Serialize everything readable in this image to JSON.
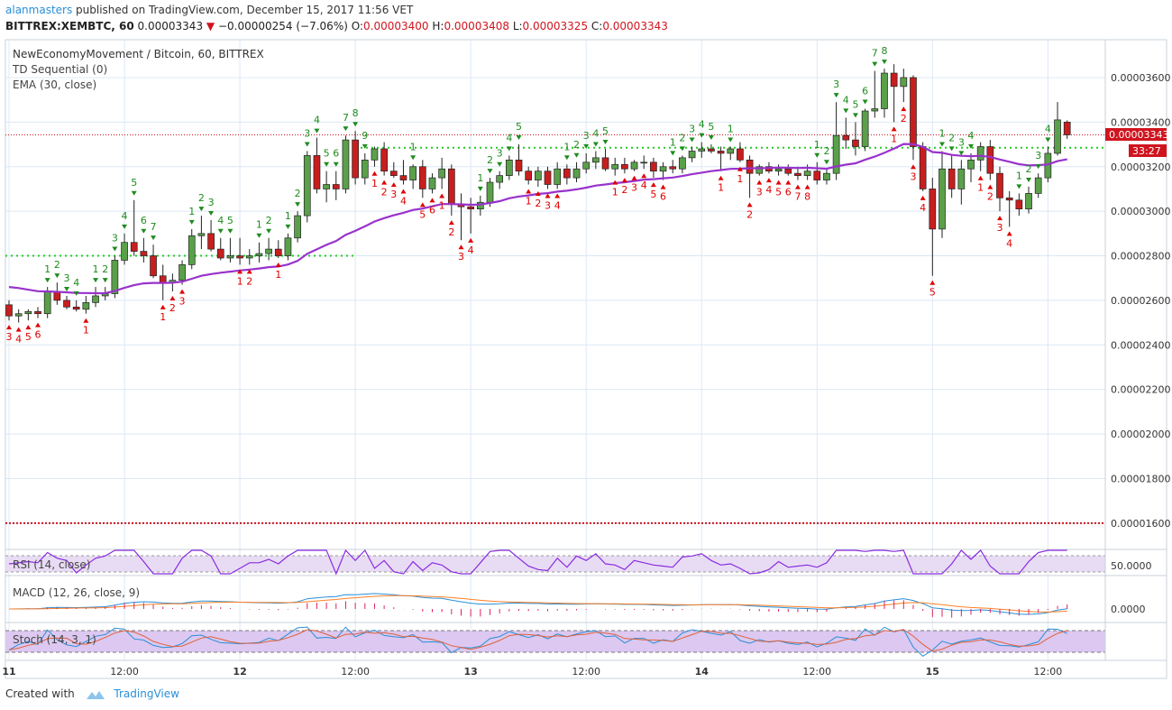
{
  "header": {
    "user": "alanmasters",
    "published_text": "published on TradingView.com, December 15, 2017 11:56 VET",
    "symbol": "BITTREX:XEMBTC, 60",
    "last": "0.00003343",
    "change": "−0.00000254 (−7.06%)",
    "open_label": "O:",
    "open": "0.00003400",
    "high_label": "H:",
    "high": "0.00003408",
    "low_label": "L:",
    "low": "0.00003325",
    "close_label": "C:",
    "close": "0.00003343"
  },
  "legend": {
    "title": "NewEconomyMovement / Bitcoin, 60, BITTREX",
    "td": "TD Sequential (0)",
    "ema": "EMA (30, close)"
  },
  "price_labels": {
    "last_price": "0.00003343",
    "countdown": "33:27"
  },
  "panes": {
    "rsi": {
      "label": "RSI (14, close)",
      "tick": "50.0000"
    },
    "macd": {
      "label": "MACD (12, 26, close, 9)",
      "tick": "0.0000"
    },
    "stoch": {
      "label": "Stoch (14, 3, 1)"
    }
  },
  "footer": {
    "created_with": "Created with",
    "brand": "TradingView"
  },
  "colors": {
    "up": "#5aa04a",
    "down": "#c81e1e",
    "ema": "#9932cc",
    "td_green": "#1e8c1e",
    "td_red": "#e00000",
    "grid": "#dce8f5",
    "rsi_fill": "#e8dcf4",
    "stoch_fill": "#dcc8f0"
  },
  "chart_data": {
    "type": "candlestick",
    "y_axis": {
      "ticks": [
        "0.00003600",
        "0.00003400",
        "0.00003200",
        "0.00003000",
        "0.00002800",
        "0.00002600",
        "0.00002400",
        "0.00002200",
        "0.00002000",
        "0.00001800",
        "0.00001600"
      ],
      "range": [
        1.49e-05,
        3.77e-05
      ]
    },
    "x_axis": {
      "ticks": [
        {
          "label": "11",
          "bar": 0
        },
        {
          "label": "12:00",
          "bar": 12
        },
        {
          "label": "12",
          "bar": 24
        },
        {
          "label": "12:00",
          "bar": 36
        },
        {
          "label": "13",
          "bar": 48
        },
        {
          "label": "12:00",
          "bar": 60
        },
        {
          "label": "14",
          "bar": 72
        },
        {
          "label": "12:00",
          "bar": 84
        },
        {
          "label": "15",
          "bar": 96
        },
        {
          "label": "12:00",
          "bar": 108
        }
      ]
    },
    "horizontal_levels": [
      3.343e-05,
      3.285e-05,
      2.8e-05,
      1.6e-05
    ],
    "candles": [
      [
        2580,
        2600,
        2510,
        2530
      ],
      [
        2530,
        2560,
        2500,
        2540
      ],
      [
        2540,
        2560,
        2510,
        2550
      ],
      [
        2550,
        2570,
        2520,
        2540
      ],
      [
        2540,
        2660,
        2520,
        2640
      ],
      [
        2640,
        2680,
        2580,
        2600
      ],
      [
        2600,
        2620,
        2560,
        2570
      ],
      [
        2570,
        2600,
        2550,
        2560
      ],
      [
        2560,
        2620,
        2540,
        2590
      ],
      [
        2590,
        2660,
        2570,
        2620
      ],
      [
        2620,
        2660,
        2600,
        2630
      ],
      [
        2630,
        2800,
        2610,
        2780
      ],
      [
        2780,
        2900,
        2760,
        2860
      ],
      [
        2860,
        3050,
        2800,
        2820
      ],
      [
        2820,
        2880,
        2770,
        2800
      ],
      [
        2800,
        2850,
        2700,
        2710
      ],
      [
        2710,
        2760,
        2600,
        2680
      ],
      [
        2680,
        2720,
        2640,
        2690
      ],
      [
        2690,
        2780,
        2670,
        2760
      ],
      [
        2760,
        2920,
        2740,
        2890
      ],
      [
        2890,
        2980,
        2830,
        2900
      ],
      [
        2900,
        2960,
        2820,
        2830
      ],
      [
        2830,
        2880,
        2780,
        2790
      ],
      [
        2790,
        2880,
        2770,
        2800
      ],
      [
        2800,
        2880,
        2760,
        2790
      ],
      [
        2790,
        2830,
        2760,
        2800
      ],
      [
        2800,
        2860,
        2770,
        2810
      ],
      [
        2810,
        2880,
        2780,
        2830
      ],
      [
        2830,
        2870,
        2790,
        2800
      ],
      [
        2800,
        2900,
        2780,
        2880
      ],
      [
        2880,
        3000,
        2860,
        2980
      ],
      [
        2980,
        3270,
        2950,
        3250
      ],
      [
        3250,
        3330,
        3080,
        3100
      ],
      [
        3100,
        3180,
        3040,
        3120
      ],
      [
        3120,
        3180,
        3050,
        3100
      ],
      [
        3100,
        3340,
        3080,
        3320
      ],
      [
        3320,
        3360,
        3120,
        3150
      ],
      [
        3150,
        3260,
        3120,
        3230
      ],
      [
        3230,
        3290,
        3200,
        3280
      ],
      [
        3280,
        3310,
        3160,
        3180
      ],
      [
        3180,
        3220,
        3150,
        3160
      ],
      [
        3160,
        3230,
        3120,
        3140
      ],
      [
        3140,
        3210,
        3100,
        3200
      ],
      [
        3200,
        3230,
        3060,
        3100
      ],
      [
        3100,
        3170,
        3080,
        3150
      ],
      [
        3150,
        3240,
        3100,
        3190
      ],
      [
        3190,
        3210,
        2980,
        3030
      ],
      [
        3030,
        3080,
        2870,
        3020
      ],
      [
        3020,
        3060,
        2900,
        3010
      ],
      [
        3010,
        3070,
        2980,
        3040
      ],
      [
        3040,
        3150,
        3020,
        3130
      ],
      [
        3130,
        3180,
        3100,
        3160
      ],
      [
        3160,
        3250,
        3140,
        3230
      ],
      [
        3230,
        3300,
        3160,
        3180
      ],
      [
        3180,
        3200,
        3120,
        3140
      ],
      [
        3140,
        3200,
        3110,
        3180
      ],
      [
        3180,
        3200,
        3100,
        3120
      ],
      [
        3120,
        3220,
        3100,
        3190
      ],
      [
        3190,
        3210,
        3120,
        3150
      ],
      [
        3150,
        3220,
        3130,
        3190
      ],
      [
        3190,
        3260,
        3170,
        3220
      ],
      [
        3220,
        3270,
        3190,
        3240
      ],
      [
        3240,
        3280,
        3180,
        3190
      ],
      [
        3190,
        3240,
        3160,
        3210
      ],
      [
        3210,
        3240,
        3170,
        3190
      ],
      [
        3190,
        3230,
        3180,
        3220
      ],
      [
        3220,
        3250,
        3190,
        3220
      ],
      [
        3220,
        3240,
        3150,
        3180
      ],
      [
        3180,
        3220,
        3140,
        3200
      ],
      [
        3200,
        3230,
        3170,
        3190
      ],
      [
        3190,
        3250,
        3170,
        3240
      ],
      [
        3240,
        3290,
        3220,
        3270
      ],
      [
        3270,
        3310,
        3240,
        3280
      ],
      [
        3280,
        3300,
        3260,
        3270
      ],
      [
        3270,
        3290,
        3180,
        3260
      ],
      [
        3260,
        3290,
        3230,
        3280
      ],
      [
        3280,
        3310,
        3220,
        3230
      ],
      [
        3230,
        3250,
        3060,
        3170
      ],
      [
        3170,
        3210,
        3160,
        3200
      ],
      [
        3200,
        3220,
        3170,
        3180
      ],
      [
        3180,
        3210,
        3160,
        3190
      ],
      [
        3190,
        3210,
        3160,
        3170
      ],
      [
        3170,
        3200,
        3140,
        3160
      ],
      [
        3160,
        3210,
        3140,
        3180
      ],
      [
        3180,
        3220,
        3120,
        3140
      ],
      [
        3140,
        3190,
        3120,
        3170
      ],
      [
        3170,
        3490,
        3140,
        3340
      ],
      [
        3340,
        3420,
        3280,
        3320
      ],
      [
        3320,
        3400,
        3250,
        3290
      ],
      [
        3290,
        3460,
        3270,
        3450
      ],
      [
        3450,
        3630,
        3420,
        3460
      ],
      [
        3460,
        3640,
        3420,
        3620
      ],
      [
        3620,
        3660,
        3400,
        3560
      ],
      [
        3560,
        3640,
        3490,
        3600
      ],
      [
        3600,
        3610,
        3230,
        3290
      ],
      [
        3290,
        3310,
        3090,
        3100
      ],
      [
        3100,
        3150,
        2710,
        2920
      ],
      [
        2920,
        3270,
        2880,
        3190
      ],
      [
        3190,
        3250,
        3060,
        3100
      ],
      [
        3100,
        3230,
        3030,
        3190
      ],
      [
        3190,
        3260,
        3130,
        3230
      ],
      [
        3230,
        3310,
        3180,
        3290
      ],
      [
        3290,
        3320,
        3140,
        3170
      ],
      [
        3170,
        3200,
        3000,
        3060
      ],
      [
        3060,
        3090,
        2930,
        3050
      ],
      [
        3050,
        3080,
        2980,
        3010
      ],
      [
        3010,
        3110,
        2990,
        3080
      ],
      [
        3080,
        3170,
        3060,
        3150
      ],
      [
        3150,
        3290,
        3130,
        3260
      ],
      [
        3260,
        3490,
        3250,
        3410
      ],
      [
        3400,
        3408,
        3325,
        3343
      ]
    ],
    "ema": [
      2660,
      2655,
      2648,
      2641,
      2640,
      2638,
      2636,
      2633,
      2633,
      2632,
      2632,
      2642,
      2656,
      2668,
      2676,
      2678,
      2678,
      2679,
      2684,
      2697,
      2710,
      2718,
      2724,
      2729,
      2734,
      2738,
      2743,
      2749,
      2752,
      2761,
      2777,
      2809,
      2829,
      2849,
      2866,
      2894,
      2912,
      2932,
      2954,
      2969,
      2982,
      2993,
      3006,
      3012,
      3022,
      3032,
      3032,
      3031,
      3029,
      3030,
      3037,
      3045,
      3058,
      3066,
      3071,
      3078,
      3081,
      3088,
      3092,
      3098,
      3106,
      3115,
      3120,
      3126,
      3130,
      3136,
      3142,
      3144,
      3148,
      3151,
      3158,
      3166,
      3173,
      3180,
      3185,
      3190,
      3191,
      3193,
      3193,
      3194,
      3196,
      3195,
      3194,
      3195,
      3193,
      3191,
      3201,
      3209,
      3215,
      3231,
      3245,
      3262,
      3281,
      3302,
      3301,
      3289,
      3266,
      3262,
      3253,
      3249,
      3247,
      3249,
      3244,
      3232,
      3222,
      3211,
      3206,
      3207,
      3210,
      3225,
      3233
    ],
    "td_labels": [
      {
        "bar": 0,
        "text": "3",
        "c": "r"
      },
      {
        "bar": 1,
        "text": "4",
        "c": "r"
      },
      {
        "bar": 2,
        "text": "5",
        "c": "r"
      },
      {
        "bar": 3,
        "text": "6",
        "c": "r"
      },
      {
        "bar": 4,
        "text": "1",
        "c": "g"
      },
      {
        "bar": 5,
        "text": "2",
        "c": "g"
      },
      {
        "bar": 6,
        "text": "3",
        "c": "g"
      },
      {
        "bar": 7,
        "text": "4",
        "c": "g"
      },
      {
        "bar": 8,
        "text": "1",
        "c": "r"
      },
      {
        "bar": 9,
        "text": "1",
        "c": "g"
      },
      {
        "bar": 10,
        "text": "2",
        "c": "g"
      },
      {
        "bar": 11,
        "text": "3",
        "c": "g"
      },
      {
        "bar": 12,
        "text": "4",
        "c": "g"
      },
      {
        "bar": 13,
        "text": "5",
        "c": "g"
      },
      {
        "bar": 14,
        "text": "6",
        "c": "g"
      },
      {
        "bar": 15,
        "text": "7",
        "c": "g"
      },
      {
        "bar": 16,
        "text": "1",
        "c": "r"
      },
      {
        "bar": 17,
        "text": "2",
        "c": "r"
      },
      {
        "bar": 18,
        "text": "3",
        "c": "r"
      },
      {
        "bar": 19,
        "text": "1",
        "c": "g"
      },
      {
        "bar": 20,
        "text": "2",
        "c": "g"
      },
      {
        "bar": 21,
        "text": "3",
        "c": "g"
      },
      {
        "bar": 22,
        "text": "4",
        "c": "g"
      },
      {
        "bar": 23,
        "text": "5",
        "c": "g"
      },
      {
        "bar": 24,
        "text": "1",
        "c": "r"
      },
      {
        "bar": 25,
        "text": "2",
        "c": "r"
      },
      {
        "bar": 26,
        "text": "1",
        "c": "g"
      },
      {
        "bar": 27,
        "text": "2",
        "c": "g"
      },
      {
        "bar": 28,
        "text": "1",
        "c": "r"
      },
      {
        "bar": 29,
        "text": "1",
        "c": "g"
      },
      {
        "bar": 30,
        "text": "2",
        "c": "g"
      },
      {
        "bar": 31,
        "text": "3",
        "c": "g"
      },
      {
        "bar": 32,
        "text": "4",
        "c": "g"
      },
      {
        "bar": 33,
        "text": "5",
        "c": "g"
      },
      {
        "bar": 34,
        "text": "6",
        "c": "g"
      },
      {
        "bar": 35,
        "text": "7",
        "c": "g"
      },
      {
        "bar": 36,
        "text": "8",
        "c": "g"
      },
      {
        "bar": 37,
        "text": "9",
        "c": "g"
      },
      {
        "bar": 38,
        "text": "1",
        "c": "r"
      },
      {
        "bar": 39,
        "text": "2",
        "c": "r"
      },
      {
        "bar": 40,
        "text": "3",
        "c": "r"
      },
      {
        "bar": 41,
        "text": "4",
        "c": "r"
      },
      {
        "bar": 42,
        "text": "1",
        "c": "g"
      },
      {
        "bar": 43,
        "text": "5",
        "c": "r"
      },
      {
        "bar": 44,
        "text": "6",
        "c": "r"
      },
      {
        "bar": 45,
        "text": "1",
        "c": "r"
      },
      {
        "bar": 46,
        "text": "2",
        "c": "r"
      },
      {
        "bar": 47,
        "text": "3",
        "c": "r"
      },
      {
        "bar": 48,
        "text": "4",
        "c": "r"
      },
      {
        "bar": 49,
        "text": "1",
        "c": "g"
      },
      {
        "bar": 50,
        "text": "2",
        "c": "g"
      },
      {
        "bar": 51,
        "text": "3",
        "c": "g"
      },
      {
        "bar": 52,
        "text": "4",
        "c": "g"
      },
      {
        "bar": 53,
        "text": "5",
        "c": "g"
      },
      {
        "bar": 54,
        "text": "1",
        "c": "r"
      },
      {
        "bar": 55,
        "text": "2",
        "c": "r"
      },
      {
        "bar": 56,
        "text": "3",
        "c": "r"
      },
      {
        "bar": 57,
        "text": "4",
        "c": "r"
      },
      {
        "bar": 58,
        "text": "1",
        "c": "g"
      },
      {
        "bar": 59,
        "text": "2",
        "c": "g"
      },
      {
        "bar": 60,
        "text": "3",
        "c": "g"
      },
      {
        "bar": 61,
        "text": "4",
        "c": "g"
      },
      {
        "bar": 62,
        "text": "5",
        "c": "g"
      },
      {
        "bar": 63,
        "text": "1",
        "c": "r"
      },
      {
        "bar": 64,
        "text": "2",
        "c": "r"
      },
      {
        "bar": 65,
        "text": "3",
        "c": "r"
      },
      {
        "bar": 66,
        "text": "4",
        "c": "r"
      },
      {
        "bar": 67,
        "text": "5",
        "c": "r"
      },
      {
        "bar": 68,
        "text": "6",
        "c": "r"
      },
      {
        "bar": 69,
        "text": "1",
        "c": "g"
      },
      {
        "bar": 70,
        "text": "2",
        "c": "g"
      },
      {
        "bar": 71,
        "text": "3",
        "c": "g"
      },
      {
        "bar": 72,
        "text": "4",
        "c": "g"
      },
      {
        "bar": 73,
        "text": "5",
        "c": "g"
      },
      {
        "bar": 74,
        "text": "1",
        "c": "r"
      },
      {
        "bar": 75,
        "text": "1",
        "c": "g"
      },
      {
        "bar": 76,
        "text": "1",
        "c": "r"
      },
      {
        "bar": 77,
        "text": "2",
        "c": "r"
      },
      {
        "bar": 78,
        "text": "3",
        "c": "r"
      },
      {
        "bar": 79,
        "text": "4",
        "c": "r"
      },
      {
        "bar": 80,
        "text": "5",
        "c": "r"
      },
      {
        "bar": 81,
        "text": "6",
        "c": "r"
      },
      {
        "bar": 82,
        "text": "7",
        "c": "r"
      },
      {
        "bar": 83,
        "text": "8",
        "c": "r"
      },
      {
        "bar": 84,
        "text": "1",
        "c": "g"
      },
      {
        "bar": 85,
        "text": "2",
        "c": "g"
      },
      {
        "bar": 86,
        "text": "3",
        "c": "g"
      },
      {
        "bar": 87,
        "text": "4",
        "c": "g"
      },
      {
        "bar": 88,
        "text": "5",
        "c": "g"
      },
      {
        "bar": 89,
        "text": "6",
        "c": "g"
      },
      {
        "bar": 90,
        "text": "7",
        "c": "g"
      },
      {
        "bar": 91,
        "text": "8",
        "c": "g"
      },
      {
        "bar": 92,
        "text": "1",
        "c": "r"
      },
      {
        "bar": 93,
        "text": "2",
        "c": "r"
      },
      {
        "bar": 94,
        "text": "3",
        "c": "r"
      },
      {
        "bar": 95,
        "text": "4",
        "c": "r"
      },
      {
        "bar": 96,
        "text": "5",
        "c": "r"
      },
      {
        "bar": 97,
        "text": "1",
        "c": "g"
      },
      {
        "bar": 98,
        "text": "2",
        "c": "g"
      },
      {
        "bar": 99,
        "text": "3",
        "c": "g"
      },
      {
        "bar": 100,
        "text": "4",
        "c": "g"
      },
      {
        "bar": 101,
        "text": "1",
        "c": "r"
      },
      {
        "bar": 102,
        "text": "2",
        "c": "r"
      },
      {
        "bar": 103,
        "text": "3",
        "c": "r"
      },
      {
        "bar": 104,
        "text": "4",
        "c": "r"
      },
      {
        "bar": 105,
        "text": "1",
        "c": "g"
      },
      {
        "bar": 106,
        "text": "2",
        "c": "g"
      },
      {
        "bar": 107,
        "text": "3",
        "c": "g"
      },
      {
        "bar": 108,
        "text": "4",
        "c": "g"
      }
    ]
  }
}
